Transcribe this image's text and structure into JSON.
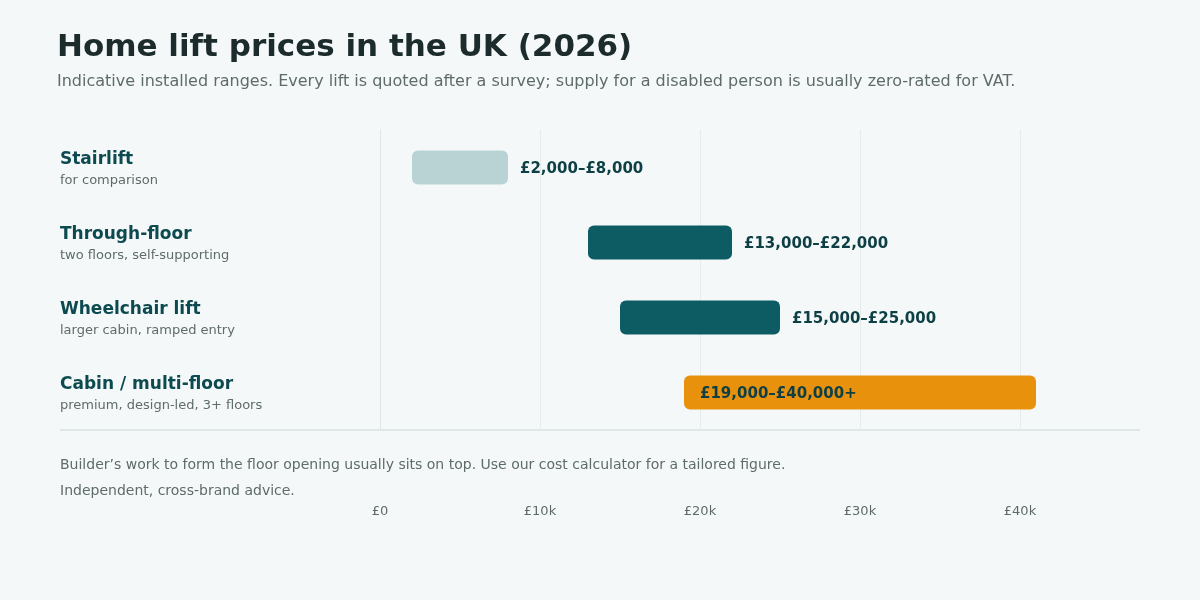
{
  "chart_data": {
    "type": "bar",
    "orientation": "horizontal",
    "title": "Home lift prices in the UK (2026)",
    "subtitle": "Indicative installed ranges. Every lift is quoted after a survey; supply for a disabled person is usually zero-rated for VAT.",
    "categories": [
      "Stairlift\nfor comparison",
      "Through-floor\ntwo floors, self-supporting",
      "Wheelchair lift\nlarger cabin, ramped entry",
      "Cabin / multi-floor\npremium, design-led, 3+ floors"
    ],
    "base": [
      2000,
      13000,
      15000,
      19000
    ],
    "values": [
      6000,
      9000,
      10000,
      22000
    ],
    "colors": [
      "#b9d3d5",
      "#0d5c63",
      "#0d5c63",
      "#e8910c"
    ],
    "value_labels": [
      "£2,000–£8,000",
      "£13,000–£22,000",
      "£15,000–£25,000",
      "£19,000–£40,000+"
    ],
    "xlim": [
      0,
      47500
    ],
    "xticks": [
      {
        "value": 0,
        "label": "£0"
      },
      {
        "value": 10000,
        "label": "£10k"
      },
      {
        "value": 20000,
        "label": "£20k"
      },
      {
        "value": 30000,
        "label": "£30k"
      },
      {
        "value": 40000,
        "label": "£40k"
      }
    ],
    "grid": "x",
    "annotations": [
      "Builder’s work to form the floor opening usually sits on top. Use our cost calculator for a tailored figure.",
      "Independent, cross-brand advice."
    ]
  }
}
